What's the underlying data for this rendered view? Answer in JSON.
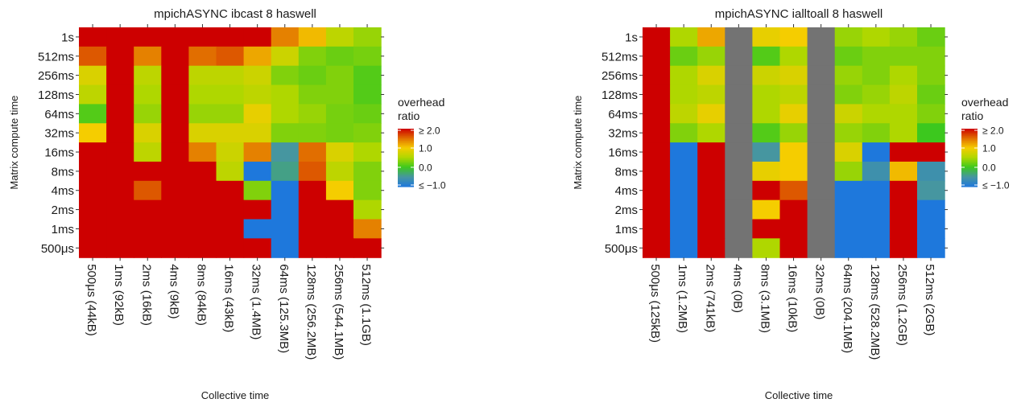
{
  "chart_data": [
    {
      "type": "heatmap",
      "title": "mpichASYNC ibcast 8 haswell",
      "xlabel": "Collective time",
      "ylabel": "Matrix compute time",
      "x": [
        "500μs (44kB)",
        "1ms (92kB)",
        "2ms (16kB)",
        "4ms (9kB)",
        "8ms (84kB)",
        "16ms (43kB)",
        "32ms (1.4MB)",
        "64ms (125.3MB)",
        "128ms (256.2MB)",
        "256ms (544.1MB)",
        "512ms (1.1GB)"
      ],
      "y": [
        "1s",
        "512ms",
        "256ms",
        "128ms",
        "64ms",
        "32ms",
        "16ms",
        "8ms",
        "4ms",
        "2ms",
        "1ms",
        "500μs"
      ],
      "values": [
        [
          2.0,
          2.0,
          2.0,
          2.0,
          2.0,
          2.0,
          2.0,
          1.4,
          1.1,
          0.6,
          0.4
        ],
        [
          1.6,
          2.0,
          1.4,
          2.0,
          1.5,
          1.6,
          1.2,
          0.7,
          0.3,
          0.2,
          0.25
        ],
        [
          0.8,
          2.0,
          0.6,
          2.0,
          0.6,
          0.6,
          0.7,
          0.3,
          0.2,
          0.3,
          0.1
        ],
        [
          0.6,
          2.0,
          0.5,
          2.0,
          0.5,
          0.5,
          0.6,
          0.5,
          0.3,
          0.3,
          0.1
        ],
        [
          0.1,
          2.0,
          0.4,
          2.0,
          0.4,
          0.4,
          0.9,
          0.5,
          0.4,
          0.25,
          0.2
        ],
        [
          1.0,
          2.0,
          0.8,
          2.0,
          0.8,
          0.8,
          0.8,
          0.3,
          0.3,
          0.25,
          0.3
        ],
        [
          2.0,
          2.0,
          0.6,
          2.0,
          1.4,
          0.7,
          1.4,
          -0.5,
          1.5,
          0.8,
          0.5
        ],
        [
          2.0,
          2.0,
          2.0,
          2.0,
          2.0,
          0.6,
          -1.0,
          -0.4,
          1.6,
          0.6,
          0.3
        ],
        [
          2.0,
          2.0,
          1.6,
          2.0,
          2.0,
          2.0,
          0.3,
          -1.0,
          2.0,
          1.0,
          0.3
        ],
        [
          2.0,
          2.0,
          2.0,
          2.0,
          2.0,
          2.0,
          2.0,
          -1.0,
          2.0,
          2.0,
          0.5
        ],
        [
          2.0,
          2.0,
          2.0,
          2.0,
          2.0,
          2.0,
          -1.0,
          -1.0,
          2.0,
          2.0,
          1.4
        ],
        [
          2.0,
          2.0,
          2.0,
          2.0,
          2.0,
          2.0,
          2.0,
          -1.0,
          2.0,
          2.0,
          2.0
        ]
      ],
      "missing_color": "#737373"
    },
    {
      "type": "heatmap",
      "title": "mpichASYNC ialltoall 8 haswell",
      "xlabel": "Collective time",
      "ylabel": "Matrix compute time",
      "x": [
        "500μs (125kB)",
        "1ms (1.2MB)",
        "2ms (741kB)",
        "4ms (0B)",
        "8ms (3.1MB)",
        "16ms (10kB)",
        "32ms (0B)",
        "64ms (204.1MB)",
        "128ms (528.2MB)",
        "256ms (1.2GB)",
        "512ms (2GB)"
      ],
      "y": [
        "1s",
        "512ms",
        "256ms",
        "128ms",
        "64ms",
        "32ms",
        "16ms",
        "8ms",
        "4ms",
        "2ms",
        "1ms",
        "500μs"
      ],
      "values": [
        [
          2.0,
          0.5,
          1.2,
          null,
          0.9,
          1.0,
          null,
          0.4,
          0.5,
          0.4,
          0.2
        ],
        [
          2.0,
          0.2,
          0.4,
          null,
          0.1,
          0.5,
          null,
          0.2,
          0.3,
          0.3,
          0.3
        ],
        [
          2.0,
          0.5,
          0.8,
          null,
          0.7,
          0.8,
          null,
          0.4,
          0.3,
          0.5,
          0.3
        ],
        [
          2.0,
          0.5,
          0.6,
          null,
          0.5,
          0.6,
          null,
          0.3,
          0.4,
          0.6,
          0.2
        ],
        [
          2.0,
          0.6,
          0.9,
          null,
          0.5,
          0.9,
          null,
          0.7,
          0.5,
          0.5,
          0.3
        ],
        [
          2.0,
          0.3,
          0.5,
          null,
          0.1,
          0.4,
          null,
          0.4,
          0.3,
          0.5,
          0.0
        ],
        [
          2.0,
          -1.0,
          2.0,
          null,
          -0.5,
          1.0,
          null,
          0.8,
          -1.0,
          2.0,
          2.0
        ],
        [
          2.0,
          -1.0,
          2.0,
          null,
          0.9,
          1.0,
          null,
          0.4,
          -0.6,
          1.1,
          -0.6
        ],
        [
          2.0,
          -1.0,
          2.0,
          null,
          2.0,
          1.6,
          null,
          -1.0,
          -1.0,
          2.0,
          -0.5
        ],
        [
          2.0,
          -1.0,
          2.0,
          null,
          1.0,
          2.0,
          null,
          -1.0,
          -1.0,
          2.0,
          -1.0
        ],
        [
          2.0,
          -1.0,
          2.0,
          null,
          2.0,
          2.0,
          null,
          -1.0,
          -1.0,
          2.0,
          -1.0
        ],
        [
          2.0,
          -1.0,
          2.0,
          null,
          0.5,
          2.0,
          null,
          -1.0,
          -1.0,
          2.0,
          -1.0
        ]
      ],
      "missing_color": "#737373"
    }
  ],
  "legend": {
    "title_line1": "overhead",
    "title_line2": "ratio",
    "labels": [
      "≥ 2.0",
      "1.0",
      "0.0",
      "≤ −1.0"
    ],
    "values": [
      2.0,
      1.0,
      0.0,
      -1.0
    ]
  }
}
